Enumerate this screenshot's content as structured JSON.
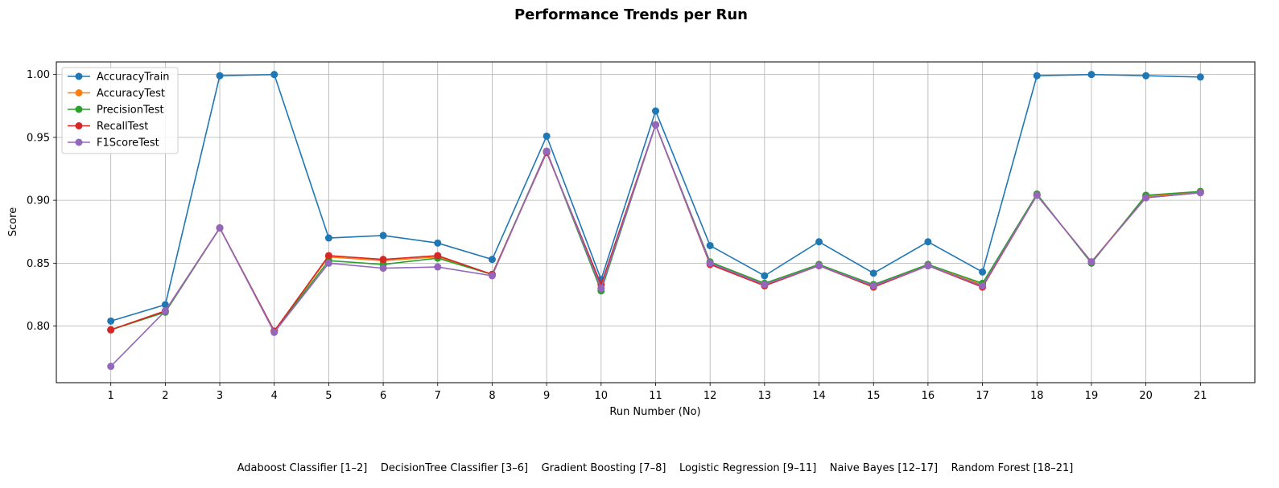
{
  "chart_data": {
    "type": "line",
    "title": "Performance Trends per Run",
    "xlabel": "Run Number (No)",
    "ylabel": "Score",
    "x": [
      1,
      2,
      3,
      4,
      5,
      6,
      7,
      8,
      9,
      10,
      11,
      12,
      13,
      14,
      15,
      16,
      17,
      18,
      19,
      20,
      21
    ],
    "yticks": [
      "0.80",
      "0.85",
      "0.90",
      "0.95",
      "1.00"
    ],
    "ylim": [
      0.755,
      1.01
    ],
    "grid": true,
    "legend_position": "top-left",
    "series": [
      {
        "name": "AccuracyTrain",
        "color": "#1f77b4",
        "values": [
          0.804,
          0.817,
          0.999,
          1.0,
          0.87,
          0.872,
          0.866,
          0.853,
          0.951,
          0.837,
          0.971,
          0.864,
          0.84,
          0.867,
          0.842,
          0.867,
          0.843,
          0.999,
          1.0,
          0.999,
          0.998
        ]
      },
      {
        "name": "AccuracyTest",
        "color": "#ff7f0e",
        "values": [
          0.797,
          0.812,
          0.878,
          0.796,
          0.855,
          0.852,
          0.855,
          0.841,
          0.939,
          0.83,
          0.96,
          0.85,
          0.833,
          0.848,
          0.832,
          0.848,
          0.833,
          0.904,
          0.851,
          0.903,
          0.907
        ]
      },
      {
        "name": "PrecisionTest",
        "color": "#2ca02c",
        "values": [
          0.797,
          0.811,
          0.878,
          0.796,
          0.852,
          0.849,
          0.854,
          0.841,
          0.939,
          0.828,
          0.96,
          0.851,
          0.834,
          0.849,
          0.833,
          0.849,
          0.834,
          0.905,
          0.85,
          0.904,
          0.907
        ]
      },
      {
        "name": "RecallTest",
        "color": "#d62728",
        "values": [
          0.797,
          0.812,
          0.878,
          0.796,
          0.856,
          0.853,
          0.856,
          0.841,
          0.938,
          0.833,
          0.96,
          0.849,
          0.832,
          0.848,
          0.831,
          0.848,
          0.831,
          0.904,
          0.851,
          0.902,
          0.906
        ]
      },
      {
        "name": "F1ScoreTest",
        "color": "#9467bd",
        "values": [
          0.768,
          0.812,
          0.878,
          0.795,
          0.85,
          0.846,
          0.847,
          0.84,
          0.939,
          0.83,
          0.96,
          0.85,
          0.833,
          0.848,
          0.832,
          0.848,
          0.832,
          0.904,
          0.851,
          0.902,
          0.906
        ]
      }
    ],
    "footnote": "Adaboost Classifier [1–2]    DecisionTree Classifier [3–6]    Gradient Boosting [7–8]    Logistic Regression [9–11]    Naive Bayes [12–17]    Random Forest [18–21]"
  }
}
